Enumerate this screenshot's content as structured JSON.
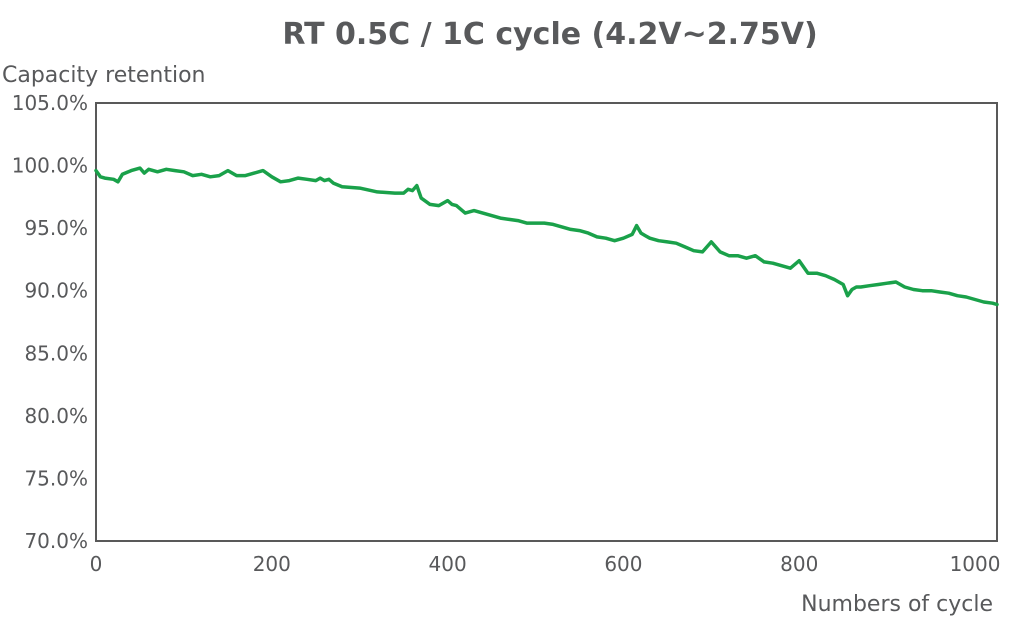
{
  "chart_data": {
    "type": "line",
    "title": "RT 0.5C / 1C cycle (4.2V~2.75V)",
    "xlabel": "Numbers of cycle",
    "ylabel": "Capacity retention",
    "xlim": [
      0,
      1025
    ],
    "ylim": [
      70,
      105
    ],
    "xticks": [
      0,
      200,
      400,
      600,
      800,
      1000
    ],
    "yticks": [
      70,
      75,
      80,
      85,
      90,
      95,
      100,
      105
    ],
    "xtick_labels": [
      "0",
      "200",
      "400",
      "600",
      "800",
      "1000"
    ],
    "ytick_labels": [
      "70.0%",
      "75.0%",
      "80.0%",
      "85.0%",
      "90.0%",
      "95.0%",
      "100.0%",
      "105.0%"
    ],
    "grid": false,
    "series": [
      {
        "color": "#1aa14a",
        "x": [
          0,
          5,
          10,
          20,
          25,
          30,
          40,
          50,
          55,
          60,
          70,
          80,
          90,
          100,
          110,
          120,
          130,
          140,
          150,
          160,
          170,
          180,
          190,
          200,
          210,
          220,
          230,
          240,
          250,
          255,
          260,
          265,
          270,
          280,
          300,
          320,
          340,
          350,
          355,
          360,
          365,
          370,
          380,
          390,
          395,
          400,
          405,
          410,
          420,
          430,
          440,
          450,
          460,
          470,
          480,
          490,
          500,
          510,
          520,
          530,
          540,
          550,
          560,
          570,
          580,
          590,
          600,
          610,
          615,
          620,
          625,
          630,
          640,
          650,
          660,
          670,
          680,
          690,
          700,
          710,
          720,
          730,
          740,
          750,
          760,
          770,
          780,
          790,
          800,
          810,
          820,
          830,
          840,
          850,
          855,
          860,
          865,
          870,
          880,
          890,
          900,
          910,
          920,
          930,
          940,
          950,
          960,
          970,
          980,
          990,
          1000,
          1010,
          1020,
          1025
        ],
        "values": [
          99.6,
          99.1,
          99.0,
          98.9,
          98.7,
          99.3,
          99.6,
          99.8,
          99.4,
          99.7,
          99.5,
          99.7,
          99.6,
          99.5,
          99.2,
          99.3,
          99.1,
          99.2,
          99.6,
          99.2,
          99.2,
          99.4,
          99.6,
          99.1,
          98.7,
          98.8,
          99.0,
          98.9,
          98.8,
          99.0,
          98.8,
          98.9,
          98.6,
          98.3,
          98.2,
          97.9,
          97.8,
          97.8,
          98.1,
          98.0,
          98.4,
          97.4,
          96.9,
          96.8,
          97.0,
          97.2,
          96.9,
          96.8,
          96.2,
          96.4,
          96.2,
          96.0,
          95.8,
          95.7,
          95.6,
          95.4,
          95.4,
          95.4,
          95.3,
          95.1,
          94.9,
          94.8,
          94.6,
          94.3,
          94.2,
          94.0,
          94.2,
          94.5,
          95.2,
          94.6,
          94.4,
          94.2,
          94.0,
          93.9,
          93.8,
          93.5,
          93.2,
          93.1,
          93.9,
          93.1,
          92.8,
          92.8,
          92.6,
          92.8,
          92.3,
          92.2,
          92.0,
          91.8,
          92.4,
          91.4,
          91.4,
          91.2,
          90.9,
          90.5,
          89.6,
          90.1,
          90.3,
          90.3,
          90.4,
          90.5,
          90.6,
          90.7,
          90.3,
          90.1,
          90.0,
          90.0,
          89.9,
          89.8,
          89.6,
          89.5,
          89.3,
          89.1,
          89.0,
          88.9
        ]
      }
    ]
  }
}
